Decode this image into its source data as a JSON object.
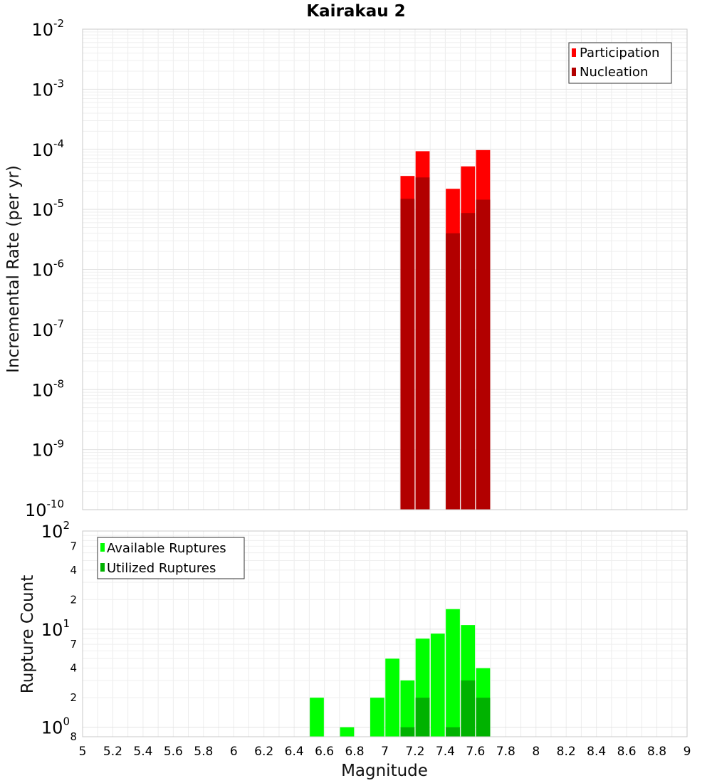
{
  "chart_data": [
    {
      "type": "bar",
      "panel": "top",
      "title": "Kairakau 2",
      "xlabel": "Magnitude",
      "ylabel": "Incremental Rate (per yr)",
      "yscale": "log",
      "xlim": [
        5,
        9
      ],
      "ylim": [
        1e-10,
        0.01
      ],
      "x_ticks": [
        "5",
        "5.2",
        "5.4",
        "5.6",
        "5.8",
        "6",
        "6.2",
        "6.4",
        "6.6",
        "6.8",
        "7",
        "7.2",
        "7.4",
        "7.6",
        "7.8",
        "8",
        "8.2",
        "8.4",
        "8.6",
        "8.8",
        "9"
      ],
      "y_ticks": [
        {
          "base": "10",
          "exp": "-10"
        },
        {
          "base": "10",
          "exp": "-9"
        },
        {
          "base": "10",
          "exp": "-8"
        },
        {
          "base": "10",
          "exp": "-7"
        },
        {
          "base": "10",
          "exp": "-6"
        },
        {
          "base": "10",
          "exp": "-5"
        },
        {
          "base": "10",
          "exp": "-4"
        },
        {
          "base": "10",
          "exp": "-3"
        },
        {
          "base": "10",
          "exp": "-2"
        }
      ],
      "legend": {
        "position": "top-right",
        "entries": [
          {
            "label": "Participation",
            "color": "#ff0000"
          },
          {
            "label": "Nucleation",
            "color": "#b20000"
          }
        ]
      },
      "series": [
        {
          "name": "Participation",
          "color": "#ff0000",
          "points": [
            {
              "x": 7.15,
              "y": 3.6e-05
            },
            {
              "x": 7.25,
              "y": 9.3e-05
            },
            {
              "x": 7.45,
              "y": 2.2e-05
            },
            {
              "x": 7.55,
              "y": 5.2e-05
            },
            {
              "x": 7.65,
              "y": 9.7e-05
            }
          ]
        },
        {
          "name": "Nucleation",
          "color": "#b20000",
          "points": [
            {
              "x": 7.15,
              "y": 1.5e-05
            },
            {
              "x": 7.25,
              "y": 3.4e-05
            },
            {
              "x": 7.45,
              "y": 4e-06
            },
            {
              "x": 7.55,
              "y": 8.7e-06
            },
            {
              "x": 7.65,
              "y": 1.45e-05
            }
          ]
        }
      ]
    },
    {
      "type": "bar",
      "panel": "bottom",
      "xlabel": "Magnitude",
      "ylabel": "Rupture Count",
      "yscale": "log",
      "xlim": [
        5,
        9
      ],
      "ylim": [
        0.8,
        100
      ],
      "x_ticks": [
        "5",
        "5.2",
        "5.4",
        "5.6",
        "5.8",
        "6",
        "6.2",
        "6.4",
        "6.6",
        "6.8",
        "7",
        "7.2",
        "7.4",
        "7.6",
        "7.8",
        "8",
        "8.2",
        "8.4",
        "8.6",
        "8.8",
        "9"
      ],
      "y_major_ticks": [
        {
          "value": 1,
          "base": "10",
          "exp": "0"
        },
        {
          "value": 10,
          "base": "10",
          "exp": "1"
        },
        {
          "value": 100,
          "base": "10",
          "exp": "2"
        }
      ],
      "y_minor_ticks": [
        {
          "value": 0.8,
          "label": "8"
        },
        {
          "value": 2,
          "label": "2"
        },
        {
          "value": 4,
          "label": "4"
        },
        {
          "value": 7,
          "label": "7"
        },
        {
          "value": 20,
          "label": "2"
        },
        {
          "value": 40,
          "label": "4"
        },
        {
          "value": 70,
          "label": "7"
        }
      ],
      "legend": {
        "position": "top-left",
        "entries": [
          {
            "label": "Available Ruptures",
            "color": "#00ff00"
          },
          {
            "label": "Utilized Ruptures",
            "color": "#00b200"
          }
        ]
      },
      "series": [
        {
          "name": "Available Ruptures",
          "color": "#00ff00",
          "points": [
            {
              "x": 6.55,
              "y": 2
            },
            {
              "x": 6.75,
              "y": 1
            },
            {
              "x": 6.95,
              "y": 2
            },
            {
              "x": 7.05,
              "y": 5
            },
            {
              "x": 7.15,
              "y": 3
            },
            {
              "x": 7.25,
              "y": 8
            },
            {
              "x": 7.35,
              "y": 9
            },
            {
              "x": 7.45,
              "y": 16
            },
            {
              "x": 7.55,
              "y": 11
            },
            {
              "x": 7.65,
              "y": 4
            }
          ]
        },
        {
          "name": "Utilized Ruptures",
          "color": "#00b200",
          "points": [
            {
              "x": 7.15,
              "y": 1
            },
            {
              "x": 7.25,
              "y": 2
            },
            {
              "x": 7.45,
              "y": 1
            },
            {
              "x": 7.55,
              "y": 3
            },
            {
              "x": 7.65,
              "y": 2
            }
          ]
        }
      ]
    }
  ]
}
